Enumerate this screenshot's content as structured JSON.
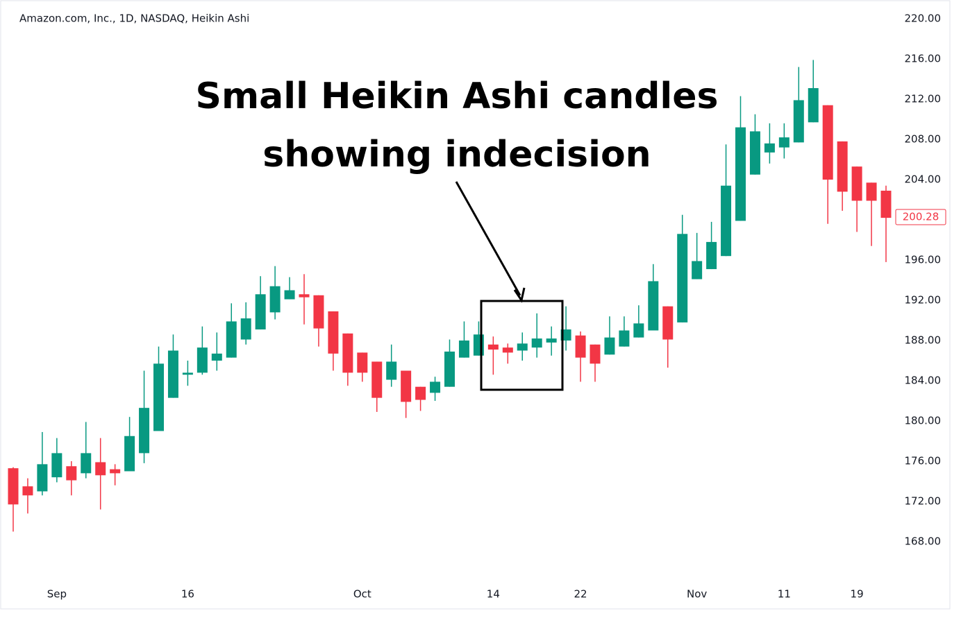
{
  "chart_data": {
    "type": "candlestick",
    "title": "Amazon.com, Inc., 1D, NASDAQ, Heikin Ashi",
    "annotation": [
      "Small Heikin Ashi candles",
      "showing indecision"
    ],
    "categories": [
      null,
      null,
      null,
      "Sep",
      null,
      null,
      null,
      null,
      null,
      null,
      null,
      null,
      "16",
      null,
      null,
      null,
      null,
      null,
      null,
      null,
      null,
      null,
      null,
      null,
      "Oct",
      null,
      null,
      null,
      null,
      null,
      null,
      null,
      null,
      "14",
      null,
      null,
      null,
      null,
      null,
      "22",
      null,
      null,
      null,
      null,
      null,
      null,
      null,
      "Nov",
      null,
      null,
      null,
      null,
      null,
      "11",
      null,
      null,
      null,
      null,
      "19",
      null,
      null
    ],
    "series": [
      {
        "up_color": "#089981",
        "down_color": "#f23645",
        "open": [
          175.3,
          173.5,
          173.0,
          174.4,
          175.5,
          174.8,
          175.9,
          175.2,
          175.0,
          176.8,
          179.0,
          182.3,
          184.6,
          184.8,
          186.0,
          186.3,
          188.1,
          189.1,
          190.8,
          192.1,
          192.6,
          192.5,
          190.9,
          188.7,
          186.8,
          185.9,
          184.1,
          185.0,
          183.4,
          182.8,
          183.4,
          186.3,
          186.5,
          187.6,
          187.3,
          187.0,
          187.3,
          187.8,
          188.0,
          188.5,
          187.6,
          186.6,
          187.4,
          188.3,
          189.0,
          191.4,
          189.8,
          194.1,
          195.1,
          196.4,
          199.9,
          204.5,
          206.7,
          207.2,
          207.7,
          209.7,
          211.4,
          207.8,
          205.3,
          203.7,
          202.9
        ],
        "high": [
          175.4,
          174.3,
          178.9,
          178.3,
          176.0,
          179.9,
          178.3,
          175.7,
          180.4,
          185.0,
          187.4,
          188.6,
          186.0,
          189.4,
          188.8,
          191.7,
          191.8,
          194.4,
          195.4,
          194.3,
          194.6,
          192.5,
          190.9,
          188.7,
          186.8,
          185.9,
          187.6,
          185.0,
          183.4,
          184.4,
          188.1,
          189.9,
          189.9,
          188.4,
          187.7,
          188.8,
          190.7,
          189.4,
          191.4,
          188.9,
          187.6,
          190.4,
          190.4,
          191.5,
          195.6,
          191.4,
          200.5,
          198.7,
          199.8,
          207.5,
          212.3,
          210.5,
          209.6,
          209.6,
          215.2,
          215.9,
          211.4,
          207.8,
          205.3,
          203.7,
          203.4
        ],
        "low": [
          169.0,
          170.8,
          172.6,
          173.9,
          172.6,
          174.3,
          171.2,
          173.6,
          175.0,
          175.8,
          179.0,
          182.3,
          183.5,
          184.6,
          185.0,
          186.3,
          187.6,
          189.1,
          190.1,
          192.1,
          189.6,
          187.4,
          185.0,
          183.5,
          183.9,
          180.9,
          183.4,
          180.3,
          181.0,
          182.0,
          183.4,
          186.3,
          186.5,
          184.6,
          185.7,
          186.0,
          186.3,
          186.5,
          187.0,
          183.9,
          183.9,
          186.6,
          187.4,
          188.3,
          189.0,
          185.3,
          189.8,
          194.1,
          195.1,
          196.4,
          199.9,
          204.5,
          205.6,
          206.1,
          207.7,
          209.7,
          199.6,
          200.9,
          198.8,
          197.4,
          195.8
        ],
        "close": [
          171.7,
          172.6,
          175.7,
          176.8,
          174.1,
          176.8,
          174.6,
          174.8,
          178.5,
          181.3,
          185.7,
          187.0,
          184.8,
          187.3,
          186.7,
          189.9,
          190.2,
          192.6,
          193.4,
          193.0,
          192.3,
          189.2,
          186.7,
          184.8,
          184.8,
          182.3,
          185.9,
          181.9,
          182.1,
          183.9,
          186.9,
          188.0,
          188.6,
          187.1,
          186.8,
          187.7,
          188.2,
          188.2,
          189.1,
          186.3,
          185.7,
          188.3,
          189.0,
          189.7,
          193.9,
          188.1,
          198.6,
          195.9,
          197.8,
          203.4,
          209.2,
          208.8,
          207.6,
          208.2,
          211.9,
          213.1,
          204.0,
          202.8,
          201.9,
          201.9,
          200.2
        ]
      }
    ],
    "last_price": 200.28,
    "ylim": [
      164,
      221.5
    ],
    "yticks": [
      {
        "value": 168,
        "label": "168.00"
      },
      {
        "value": 172,
        "label": "172.00"
      },
      {
        "value": 176,
        "label": "176.00"
      },
      {
        "value": 180,
        "label": "180.00"
      },
      {
        "value": 184,
        "label": "184.00"
      },
      {
        "value": 188,
        "label": "188.00"
      },
      {
        "value": 192,
        "label": "192.00"
      },
      {
        "value": 196,
        "label": "196.00"
      },
      {
        "value": 200,
        "label": "200.00"
      },
      {
        "value": 204,
        "label": "204.00"
      },
      {
        "value": 208,
        "label": "208.00"
      },
      {
        "value": 212,
        "label": "212.00"
      },
      {
        "value": 216,
        "label": "216.00"
      },
      {
        "value": 220,
        "label": "220.00"
      }
    ]
  }
}
